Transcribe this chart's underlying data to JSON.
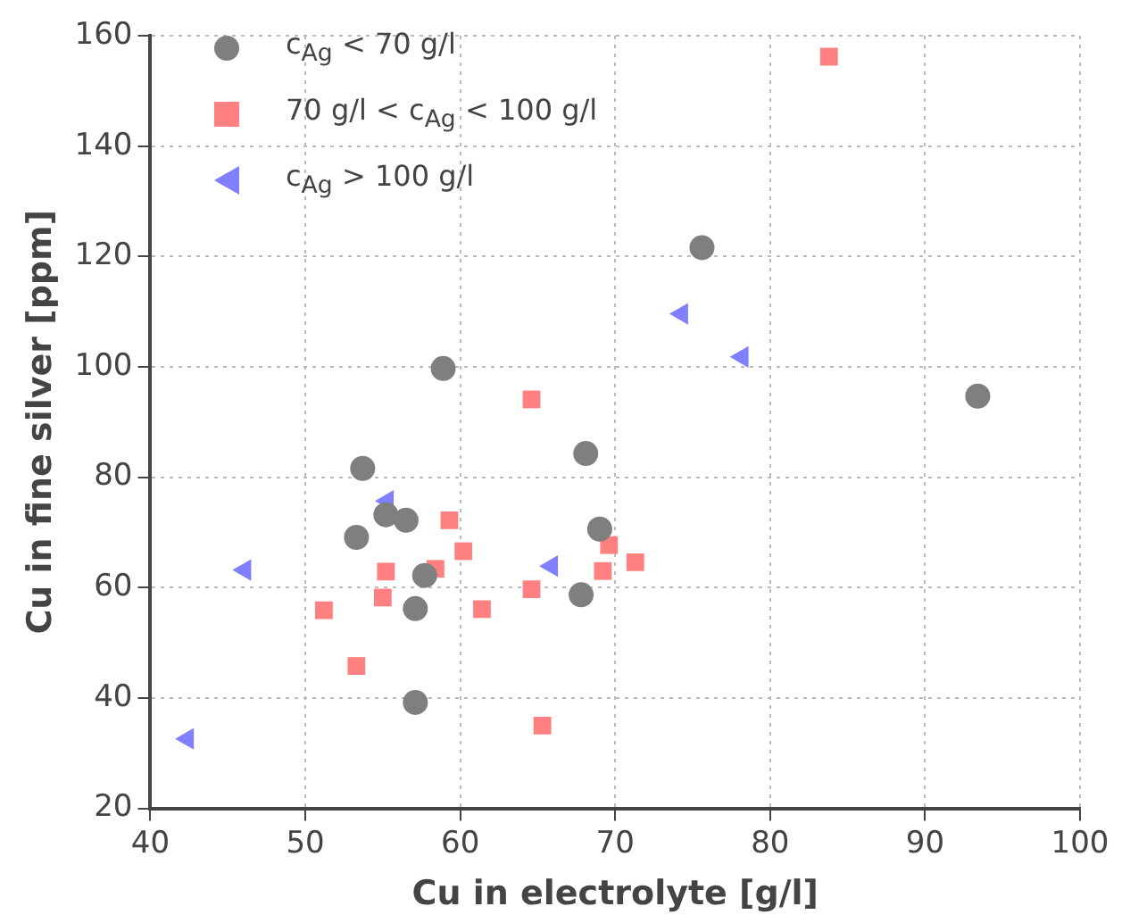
{
  "chart_data": {
    "type": "scatter",
    "xlabel": "Cu in electrolyte [g/l]",
    "ylabel": "Cu in fine silver [ppm]",
    "xlim": [
      40,
      100
    ],
    "xticks": [
      40,
      50,
      60,
      70,
      80,
      90,
      100
    ],
    "ylim": [
      20,
      160
    ],
    "yticks": [
      20,
      40,
      60,
      80,
      100,
      120,
      140,
      160
    ],
    "grid": true,
    "legend": "top left",
    "series": [
      {
        "name": "c$_{Ag}$ < 70 g/l",
        "color": "#7f7f7f",
        "marker": "circle",
        "x": [
          75.6,
          93.4,
          58.9,
          53.7,
          68.1,
          53.3,
          55.2,
          56.5,
          69.0,
          57.7,
          57.1,
          67.8,
          57.1
        ],
        "values": [
          121.6,
          94.7,
          99.7,
          81.6,
          84.3,
          69.1,
          73.2,
          72.2,
          70.6,
          62.2,
          56.2,
          58.7,
          39.2
        ]
      },
      {
        "name": "70 g/l < c$_{Ag}$ < 100 g/l",
        "color": "#ff8080",
        "marker": "square",
        "x": [
          83.8,
          64.6,
          59.3,
          60.2,
          55.2,
          58.4,
          55.0,
          51.2,
          61.4,
          64.6,
          69.2,
          69.6,
          71.3,
          53.3,
          65.3
        ],
        "values": [
          156.2,
          94.1,
          72.2,
          66.6,
          62.9,
          63.4,
          58.2,
          55.9,
          56.1,
          59.7,
          63.0,
          67.7,
          64.6,
          45.8,
          35.0
        ]
      },
      {
        "name": "c$_{Ag}$ > 100 g/l",
        "color": "#7f7fff",
        "marker": "triangle",
        "x": [
          42.4,
          46.1,
          55.3,
          65.9,
          74.3,
          78.2
        ],
        "values": [
          32.6,
          63.2,
          75.7,
          63.9,
          109.6,
          101.8
        ]
      }
    ]
  }
}
